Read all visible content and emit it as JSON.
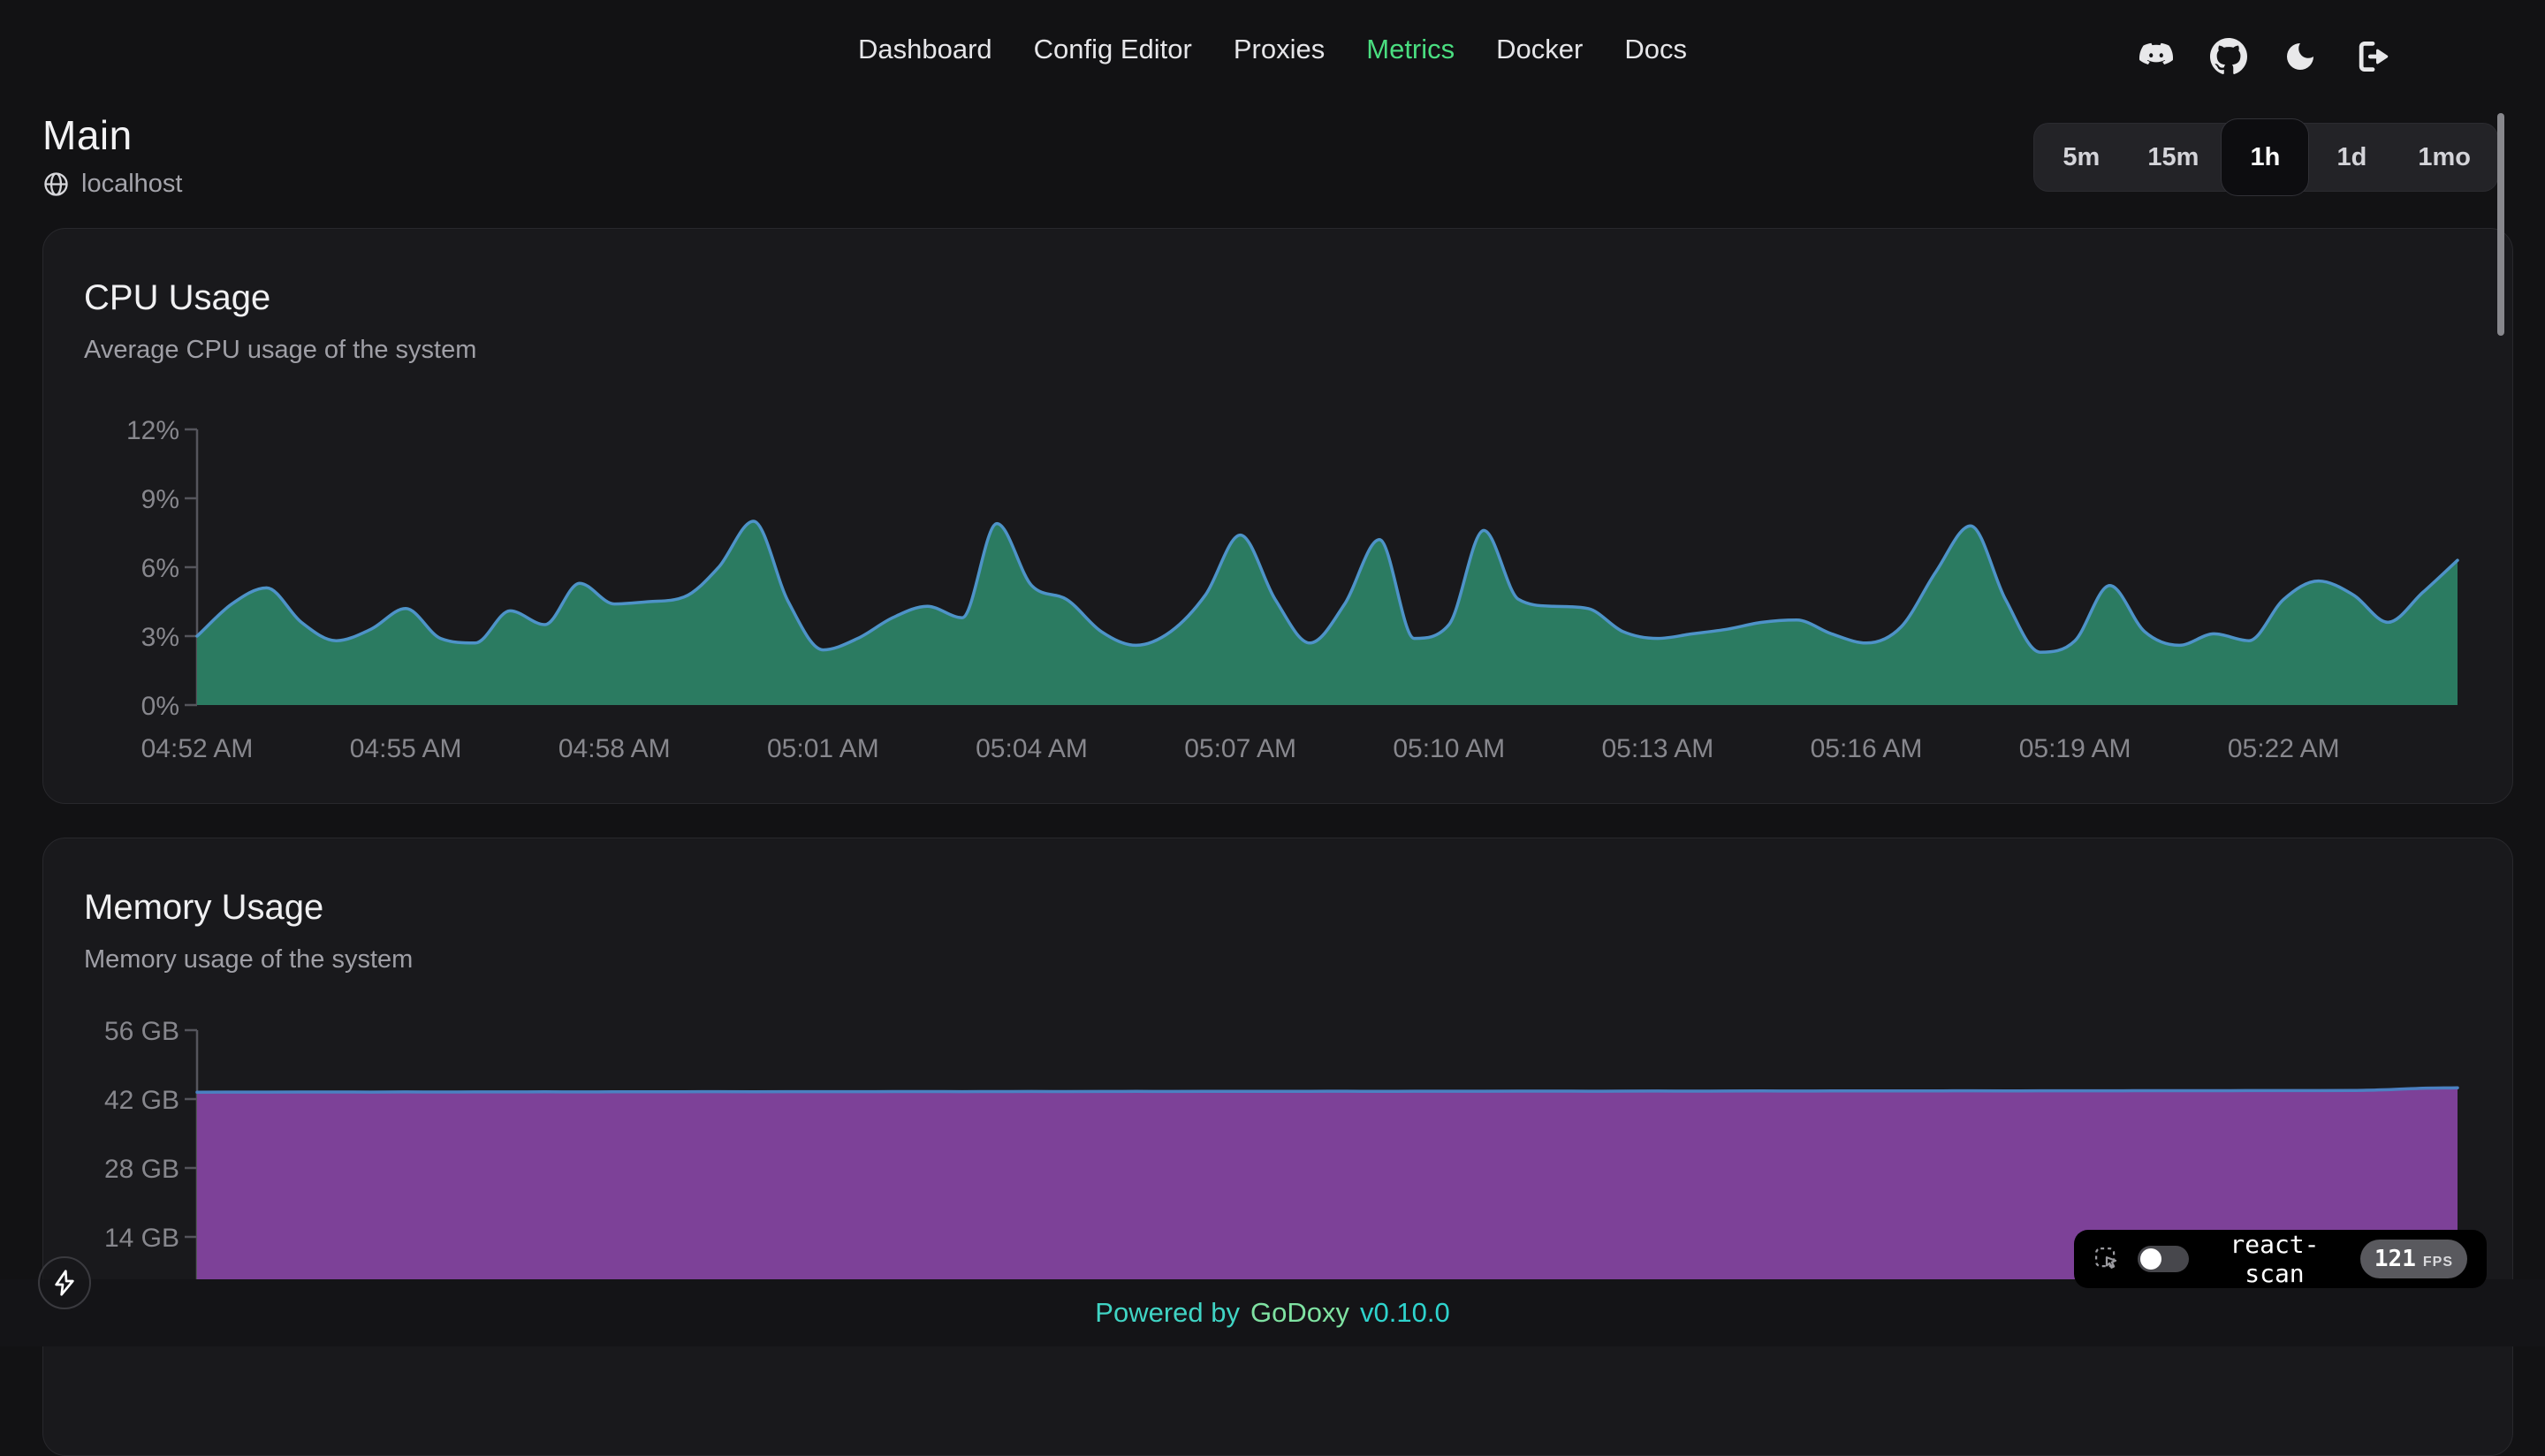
{
  "nav": {
    "items": [
      {
        "label": "Dashboard",
        "active": false
      },
      {
        "label": "Config Editor",
        "active": false
      },
      {
        "label": "Proxies",
        "active": false
      },
      {
        "label": "Metrics",
        "active": true
      },
      {
        "label": "Docker",
        "active": false
      },
      {
        "label": "Docs",
        "active": false
      }
    ],
    "icons": [
      "discord-icon",
      "github-icon",
      "moon-icon",
      "logout-icon"
    ]
  },
  "header": {
    "title": "Main",
    "host": "localhost"
  },
  "time_range": {
    "options": [
      "5m",
      "15m",
      "1h",
      "1d",
      "1mo"
    ],
    "selected": "1h"
  },
  "cards": [
    {
      "title": "CPU Usage",
      "subtitle": "Average CPU usage of the system"
    },
    {
      "title": "Memory Usage",
      "subtitle": "Memory usage of the system"
    }
  ],
  "chart_data": [
    {
      "type": "area",
      "name": "cpu",
      "title": "CPU Usage",
      "unit": "%",
      "y_max": 12,
      "grid": false,
      "legend": "none",
      "y_ticks": [
        {
          "value": 0,
          "label": "0%"
        },
        {
          "value": 3,
          "label": "3%"
        },
        {
          "value": 6,
          "label": "6%"
        },
        {
          "value": 9,
          "label": "9%"
        },
        {
          "value": 12,
          "label": "12%"
        }
      ],
      "x_ticks": [
        {
          "minute": 0,
          "label": "04:52 AM"
        },
        {
          "minute": 3,
          "label": "04:55 AM"
        },
        {
          "minute": 6,
          "label": "04:58 AM"
        },
        {
          "minute": 9,
          "label": "05:01 AM"
        },
        {
          "minute": 12,
          "label": "05:04 AM"
        },
        {
          "minute": 15,
          "label": "05:07 AM"
        },
        {
          "minute": 18,
          "label": "05:10 AM"
        },
        {
          "minute": 21,
          "label": "05:13 AM"
        },
        {
          "minute": 24,
          "label": "05:16 AM"
        },
        {
          "minute": 27,
          "label": "05:19 AM"
        },
        {
          "minute": 30,
          "label": "05:22 AM"
        }
      ],
      "t_max": 32.5,
      "interval_min": 0.5,
      "values": [
        3.0,
        4.4,
        5.1,
        3.6,
        2.8,
        3.3,
        4.2,
        2.9,
        2.7,
        4.1,
        3.5,
        5.3,
        4.4,
        4.5,
        4.7,
        6.0,
        8.0,
        4.5,
        2.4,
        2.9,
        3.8,
        4.3,
        3.8,
        7.9,
        5.2,
        4.6,
        3.2,
        2.6,
        3.2,
        4.8,
        7.4,
        4.6,
        2.7,
        4.4,
        7.2,
        2.9,
        3.5,
        7.6,
        4.6,
        4.3,
        4.2,
        3.2,
        2.9,
        3.1,
        3.3,
        3.6,
        3.7,
        3.1,
        2.7,
        3.4,
        5.8,
        7.8,
        4.6,
        2.3,
        2.8,
        5.2,
        3.2,
        2.6,
        3.1,
        2.8,
        4.6,
        5.4,
        4.8,
        3.6,
        4.9,
        6.3
      ],
      "fill": "#2b7b61",
      "stroke": "#4e93c8"
    },
    {
      "type": "area",
      "name": "memory",
      "title": "Memory Usage",
      "unit": "GB",
      "y_max": 56,
      "grid": false,
      "legend": "none",
      "y_ticks": [
        {
          "value": 14,
          "label": "14 GB"
        },
        {
          "value": 28,
          "label": "28 GB"
        },
        {
          "value": 42,
          "label": "42 GB"
        },
        {
          "value": 56,
          "label": "56 GB"
        }
      ],
      "x_ticks": [],
      "t_max": 32.5,
      "interval_min": 0.5,
      "values": [
        43.4,
        43.42,
        43.41,
        43.43,
        43.44,
        43.42,
        43.45,
        43.44,
        43.46,
        43.45,
        43.47,
        43.46,
        43.48,
        43.47,
        43.49,
        43.5,
        43.48,
        43.5,
        43.51,
        43.5,
        43.52,
        43.53,
        43.51,
        43.53,
        43.54,
        43.53,
        43.55,
        43.56,
        43.54,
        43.56,
        43.57,
        43.56,
        43.58,
        43.59,
        43.57,
        43.59,
        43.6,
        43.59,
        43.61,
        43.62,
        43.6,
        43.62,
        43.63,
        43.62,
        43.64,
        43.65,
        43.63,
        43.65,
        43.66,
        43.65,
        43.67,
        43.68,
        43.66,
        43.68,
        43.69,
        43.68,
        43.7,
        43.71,
        43.7,
        43.72,
        43.73,
        43.72,
        43.74,
        43.9,
        44.2,
        44.3
      ],
      "fill": "#7d4198",
      "stroke": "#4b80c1"
    }
  ],
  "footer": {
    "powered_by": "Powered by",
    "brand": "GoDoxy",
    "version": "v0.10.0"
  },
  "react_scan": {
    "label": "react-scan",
    "fps": "121",
    "fps_unit": "FPS"
  },
  "colors": {
    "accent_green": "#4ade80",
    "page_bg": "#121214",
    "card_bg": "#19191c",
    "cpu_fill": "#2b7b61",
    "cpu_stroke": "#4e93c8",
    "mem_fill": "#7d4198",
    "mem_stroke": "#4b80c1",
    "footer_teal": "#40d4c4",
    "footer_green": "#7fe2a2"
  }
}
